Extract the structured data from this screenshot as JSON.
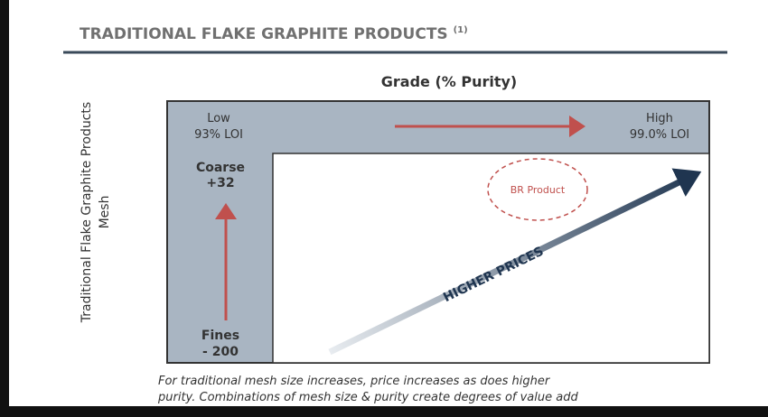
{
  "header": {
    "title": "TRADITIONAL FLAKE GRAPHITE PRODUCTS",
    "note": "(1)"
  },
  "diagram": {
    "top_label": "Grade (% Purity)",
    "side_label": [
      "Traditional Flake Graphite Products",
      "Mesh"
    ],
    "low": [
      "Low",
      "93% LOI"
    ],
    "high": [
      "High",
      "99.0% LOI"
    ],
    "coarse": [
      "Coarse",
      "+32"
    ],
    "fines": [
      "Fines",
      "- 200"
    ],
    "product": "BR Product",
    "arrow_label": "HIGHER PRICES"
  },
  "caption": [
    "For traditional mesh size increases, price increases as does higher",
    "purity. Combinations of mesh size & purity create degrees of value add"
  ]
}
